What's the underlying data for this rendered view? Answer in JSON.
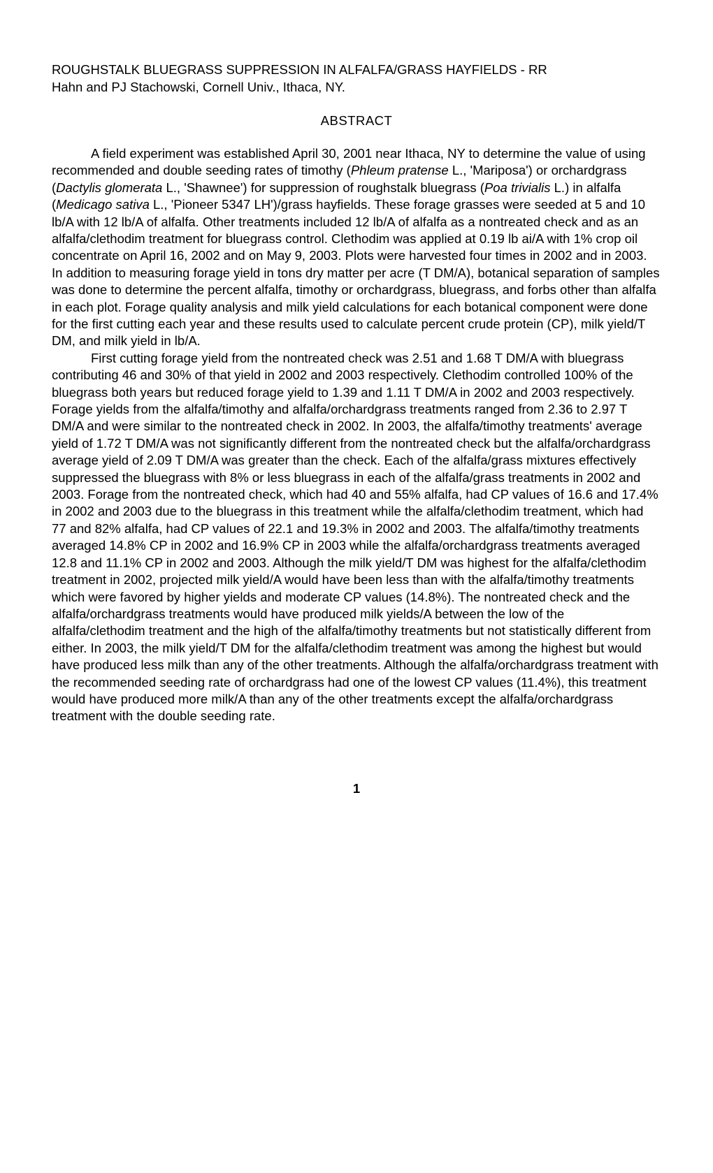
{
  "title_line1": "ROUGHSTALK BLUEGRASS SUPPRESSION IN ALFALFA/GRASS HAYFIELDS - RR",
  "title_line2": "Hahn and PJ Stachowski, Cornell Univ., Ithaca, NY.",
  "abstract_heading": "ABSTRACT",
  "para1_a": "A field experiment was established April 30, 2001 near Ithaca, NY to determine the value of using recommended and double seeding rates of timothy (",
  "para1_b": "Phleum pratense",
  "para1_c": " L., 'Mariposa') or orchardgrass (",
  "para1_d": "Dactylis glomerata",
  "para1_e": " L., 'Shawnee') for suppression of roughstalk bluegrass (",
  "para1_f": "Poa trivialis",
  "para1_g": " L.) in alfalfa (",
  "para1_h": "Medicago sativa",
  "para1_i": " L., 'Pioneer 5347 LH')/grass hayfields. These forage grasses were seeded at 5 and 10 lb/A with 12 lb/A of alfalfa. Other treatments included 12 lb/A of alfalfa as a nontreated check and as an alfalfa/clethodim treatment for bluegrass control. Clethodim was applied at 0.19 lb ai/A with 1% crop oil concentrate on April 16, 2002 and on May 9, 2003. Plots were harvested four times in 2002 and in 2003. In addition to measuring forage yield in tons dry matter per acre (T DM/A), botanical separation of samples was done to determine the percent alfalfa, timothy or orchardgrass, bluegrass, and forbs other than alfalfa in each plot. Forage quality analysis and milk yield calculations for each botanical component were done for the first cutting each year and these results used to calculate percent crude protein (CP), milk yield/T DM, and milk yield in lb/A.",
  "para2": "First cutting forage yield from the nontreated check was 2.51 and 1.68 T DM/A with bluegrass contributing 46 and 30% of that yield in 2002 and 2003 respectively. Clethodim controlled 100% of the bluegrass both years but reduced forage yield to 1.39 and 1.11 T DM/A in 2002 and 2003 respectively. Forage yields from the alfalfa/timothy and alfalfa/orchardgrass treatments ranged from 2.36 to 2.97 T DM/A and were similar to the nontreated check in 2002. In 2003, the alfalfa/timothy treatments' average yield of 1.72 T DM/A was not significantly different from the nontreated check but the alfalfa/orchardgrass average yield of 2.09 T DM/A was greater than the check. Each of the alfalfa/grass mixtures effectively suppressed the bluegrass with 8% or less bluegrass in each of the alfalfa/grass treatments in 2002 and 2003. Forage from the nontreated check, which had 40 and 55% alfalfa, had CP values of 16.6 and 17.4% in 2002 and 2003 due to the bluegrass in this treatment while the alfalfa/clethodim treatment, which had 77 and 82% alfalfa, had CP values of 22.1 and 19.3% in 2002 and 2003. The alfalfa/timothy treatments averaged 14.8% CP in 2002 and 16.9% CP in 2003 while the alfalfa/orchardgrass treatments averaged 12.8 and 11.1% CP in 2002 and 2003. Although the milk yield/T DM was highest for the alfalfa/clethodim treatment in 2002, projected milk yield/A would have been less than with the alfalfa/timothy treatments which were favored by higher yields and moderate CP values (14.8%). The nontreated check and the alfalfa/orchardgrass treatments would have produced milk yields/A between the low of the alfalfa/clethodim treatment and the high of the alfalfa/timothy treatments but not statistically different from either. In 2003, the milk yield/T DM for the alfalfa/clethodim treatment was among the highest but would have produced less milk than any of the other treatments. Although the alfalfa/orchardgrass treatment with the recommended seeding rate of orchardgrass had one of the lowest CP values (11.4%), this treatment would have produced more milk/A than any of the other treatments except the alfalfa/orchardgrass treatment with the double seeding rate.",
  "page_number": "1"
}
